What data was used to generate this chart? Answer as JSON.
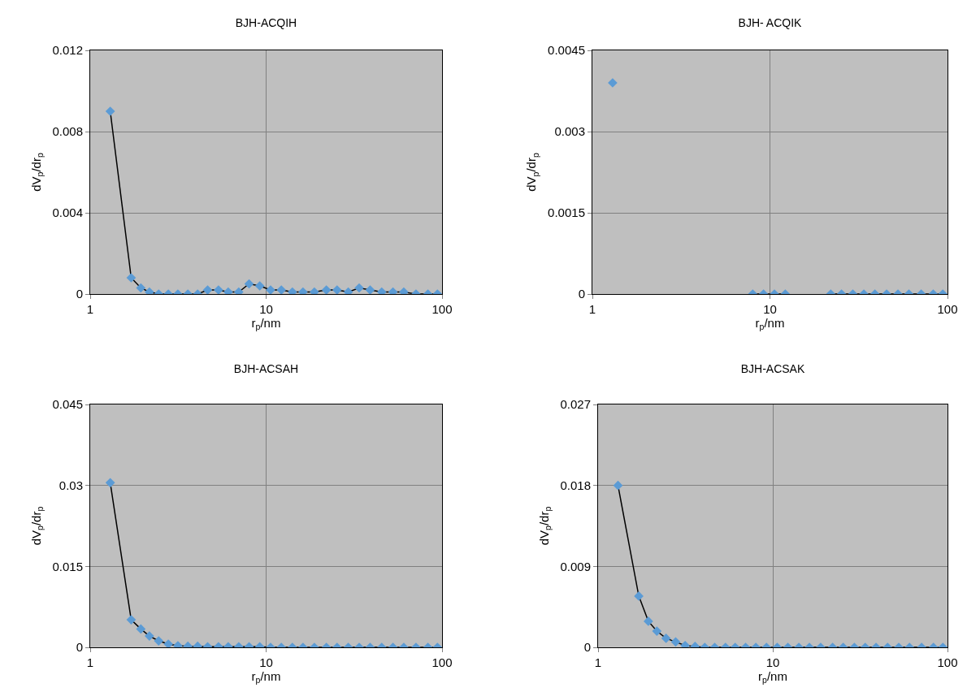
{
  "chart_data": [
    {
      "type": "line",
      "title": "BJH-ACQIH",
      "xlabel": "r$_{p}$/nm",
      "ylabel": "dV$_{p}$/dr$_{p}$",
      "log": "x",
      "xlim": [
        1,
        100
      ],
      "xticks": [
        1,
        10,
        100
      ],
      "ylim": [
        0,
        0.012
      ],
      "yticks": [
        0,
        0.004,
        0.008,
        0.012
      ],
      "grid": true,
      "marker": "diamond",
      "line_style": "solid",
      "x": [
        1.3,
        1.71,
        1.94,
        2.17,
        2.45,
        2.78,
        3.15,
        3.59,
        4.08,
        4.65,
        5.36,
        6.09,
        6.99,
        8.0,
        9.2,
        10.6,
        12.2,
        14.1,
        16.2,
        18.8,
        22.0,
        25.3,
        29.3,
        33.8,
        39.0,
        45.4,
        52.6,
        60.6,
        71.1,
        83.1,
        94.1
      ],
      "series": [
        {
          "color": "#5b9bd5",
          "values": [
            0.009,
            0.0008,
            0.0003,
            0.0001,
            0,
            0,
            0,
            0,
            0,
            0.0002,
            0.0002,
            0.0001,
            0.0001,
            0.0005,
            0.0004,
            0.0002,
            0.0002,
            0.0001,
            0.0001,
            0.0001,
            0.0002,
            0.0002,
            0.0001,
            0.0003,
            0.0002,
            0.0001,
            0.0001,
            0.0001,
            0,
            0,
            0
          ]
        }
      ]
    },
    {
      "type": "line",
      "title": "BJH- ACQIK",
      "xlabel": "r$_{p}$/nm",
      "ylabel": "dV$_{p}$/dr$_{p}$",
      "log": "x",
      "xlim": [
        1,
        100
      ],
      "xticks": [
        1,
        10,
        100
      ],
      "ylim": [
        0,
        0.0045
      ],
      "yticks": [
        0,
        0.0015,
        0.003,
        0.0045
      ],
      "grid": true,
      "marker": "diamond",
      "line_style": "solid",
      "x": [
        1.3,
        1.71,
        1.94,
        2.17,
        2.45,
        2.78,
        3.15,
        3.59,
        4.08,
        4.65,
        5.36,
        6.09,
        6.99,
        8.0,
        9.2,
        10.6,
        12.2,
        14.1,
        16.2,
        18.8,
        22.0,
        25.3,
        29.3,
        33.8,
        39.0,
        45.4,
        52.6,
        60.6,
        71.1,
        83.1,
        94.1
      ],
      "series": [
        {
          "color": "#5b9bd5",
          "values": [
            0.0039,
            null,
            null,
            null,
            null,
            null,
            null,
            null,
            null,
            null,
            null,
            null,
            null,
            0,
            0,
            0,
            0,
            null,
            null,
            null,
            0,
            0,
            0,
            0,
            0,
            0,
            0,
            0,
            0,
            0,
            0
          ]
        }
      ]
    },
    {
      "type": "line",
      "title": "BJH-ACSAH",
      "xlabel": "r$_{p}$/nm",
      "ylabel": "dV$_{p}$/dr$_{p}$",
      "log": "x",
      "xlim": [
        1,
        100
      ],
      "xticks": [
        1,
        10,
        100
      ],
      "ylim": [
        0,
        0.045
      ],
      "yticks": [
        0,
        0.015,
        0.03,
        0.045
      ],
      "grid": true,
      "marker": "diamond",
      "line_style": "solid",
      "x": [
        1.3,
        1.71,
        1.94,
        2.17,
        2.45,
        2.78,
        3.15,
        3.59,
        4.08,
        4.65,
        5.36,
        6.09,
        6.99,
        8.0,
        9.2,
        10.6,
        12.2,
        14.1,
        16.2,
        18.8,
        22.0,
        25.3,
        29.3,
        33.8,
        39.0,
        45.4,
        52.6,
        60.6,
        71.1,
        83.1,
        94.1
      ],
      "series": [
        {
          "color": "#5b9bd5",
          "values": [
            0.0305,
            0.0051,
            0.0034,
            0.0021,
            0.0012,
            0.0006,
            0.0003,
            0.0002,
            0.0002,
            0.0001,
            0.0001,
            0.0001,
            0.0001,
            0.0001,
            0.0001,
            0,
            0,
            0,
            0,
            0,
            0,
            0,
            0,
            0,
            0,
            0,
            0,
            0,
            0,
            0,
            0
          ]
        }
      ]
    },
    {
      "type": "line",
      "title": "BJH-ACSAK",
      "xlabel": "r$_{p}$/nm",
      "ylabel": "dV$_{p}$/dr$_{p}$",
      "log": "x",
      "xlim": [
        1,
        100
      ],
      "xticks": [
        1,
        10,
        100
      ],
      "ylim": [
        0,
        0.027
      ],
      "yticks": [
        0,
        0.009,
        0.018,
        0.027
      ],
      "grid": true,
      "marker": "diamond",
      "line_style": "solid",
      "x": [
        1.3,
        1.71,
        1.94,
        2.17,
        2.45,
        2.78,
        3.15,
        3.59,
        4.08,
        4.65,
        5.36,
        6.09,
        6.99,
        8.0,
        9.2,
        10.6,
        12.2,
        14.1,
        16.2,
        18.8,
        22.0,
        25.3,
        29.3,
        33.8,
        39.0,
        45.4,
        52.6,
        60.6,
        71.1,
        83.1,
        94.1
      ],
      "series": [
        {
          "color": "#5b9bd5",
          "values": [
            0.018,
            0.0057,
            0.0029,
            0.0018,
            0.001,
            0.0006,
            0.0002,
            0.0001,
            0,
            0,
            0,
            0,
            0,
            0,
            0,
            0,
            0,
            0,
            0,
            0,
            0,
            0,
            0,
            0,
            0,
            0,
            0,
            0,
            0,
            0,
            0
          ]
        }
      ]
    }
  ]
}
